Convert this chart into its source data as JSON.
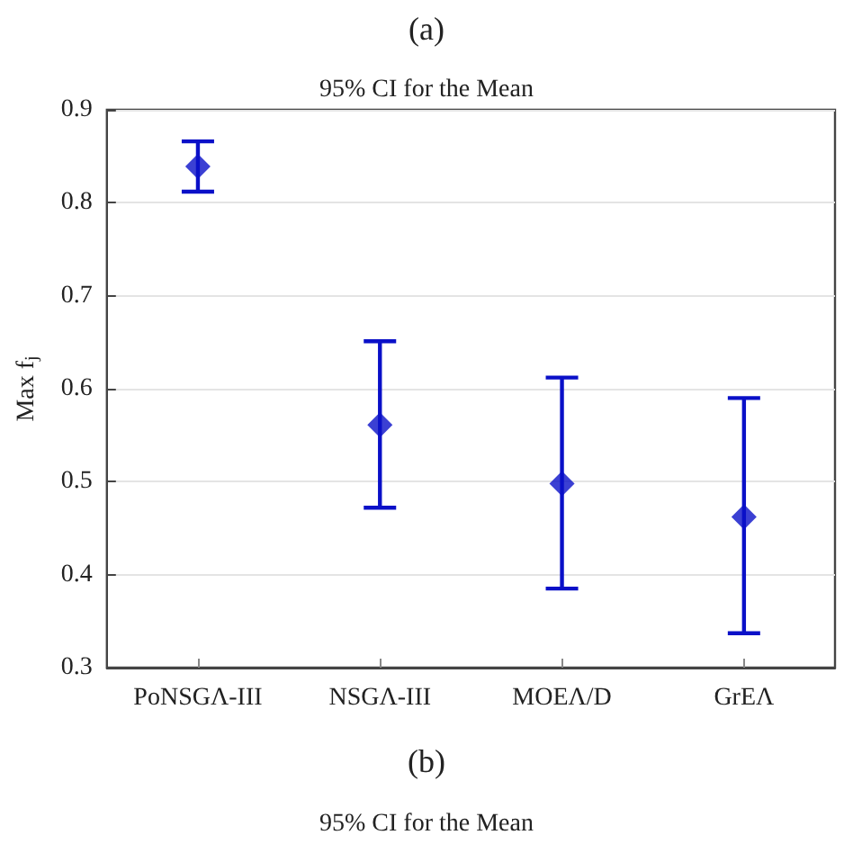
{
  "chart_data": {
    "type": "scatter",
    "title": "95% CI for the Mean",
    "ylabel": "Max f$_{j}$",
    "categories": [
      "PoNSGΛ-III",
      "NSGΛ-III",
      "MOEΛ/D",
      "GrEΛ"
    ],
    "values": [
      0.839,
      0.561,
      0.498,
      0.462
    ],
    "errors": [
      [
        0.812,
        0.866
      ],
      [
        0.472,
        0.651
      ],
      [
        0.385,
        0.612
      ],
      [
        0.337,
        0.59
      ]
    ],
    "color": "#0a10c8",
    "marker": "diamond",
    "grid": "y",
    "ylim": [
      0.3,
      0.9
    ],
    "yticks": [
      0.3,
      0.4,
      0.5,
      0.6,
      0.7,
      0.8,
      0.9
    ],
    "annotations": [
      "(a)",
      "(b)",
      "95% CI for the Mean"
    ]
  }
}
